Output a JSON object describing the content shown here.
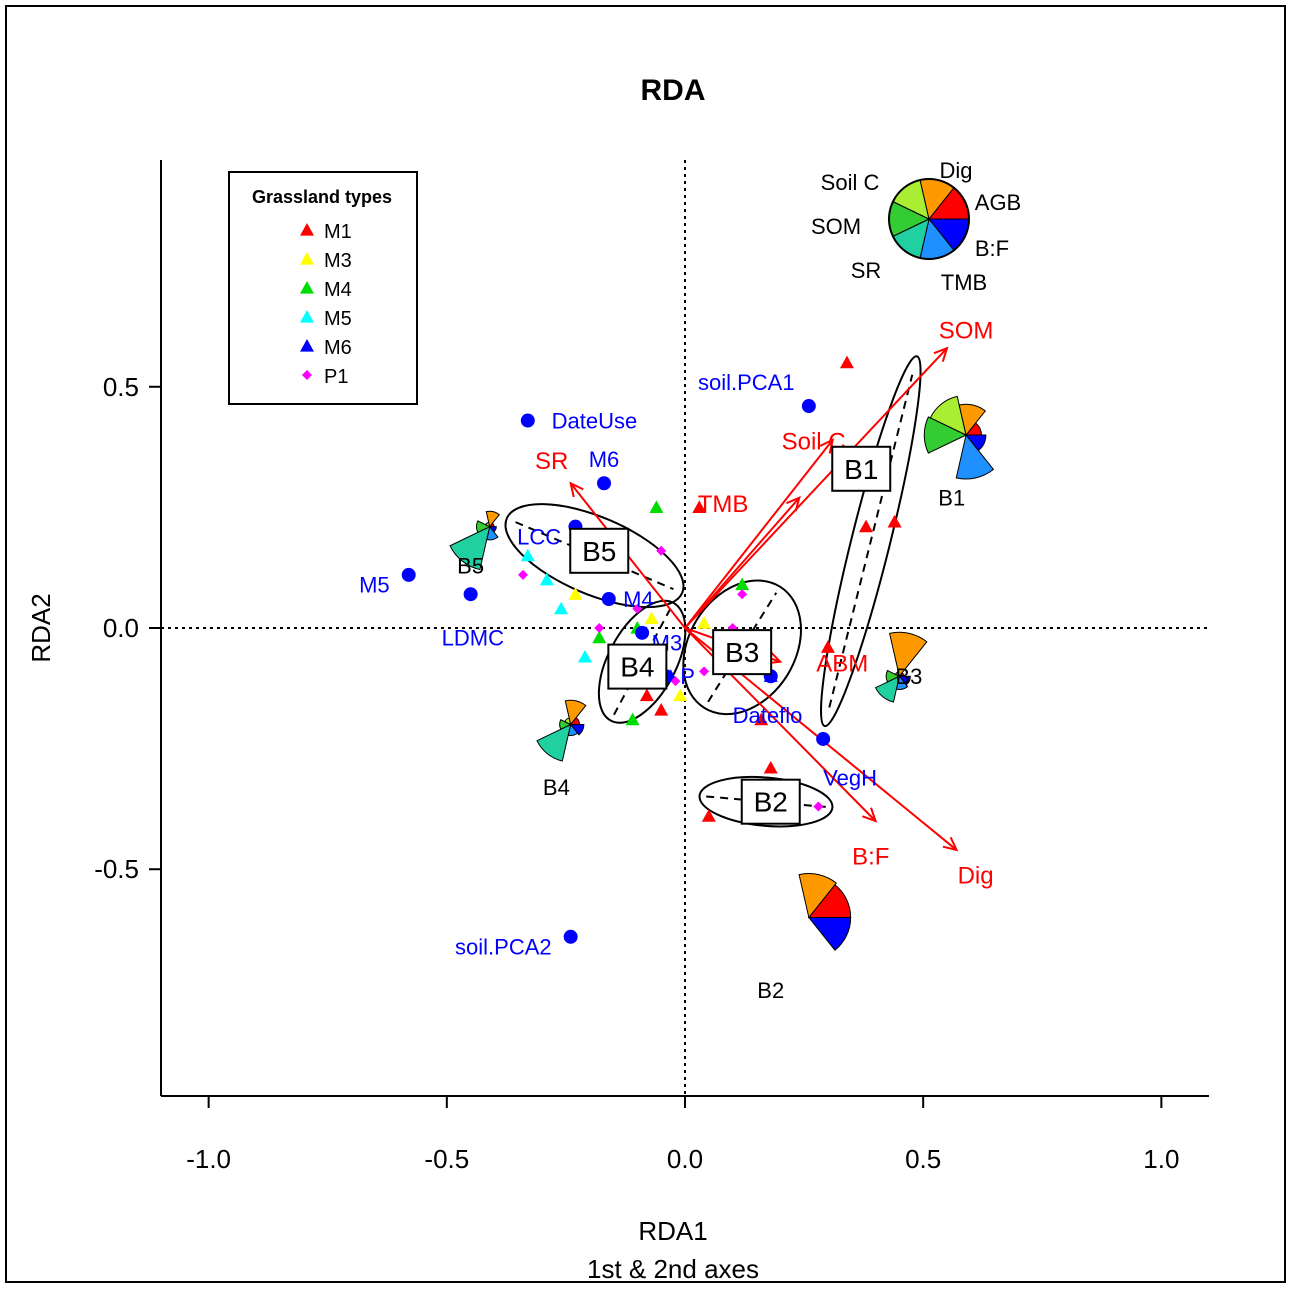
{
  "chart_data": {
    "type": "scatter",
    "title": "RDA",
    "xlabel": "RDA1",
    "xlabel2": "1st & 2nd axes",
    "ylabel": "RDA2",
    "xlim": [
      -1.1,
      1.1
    ],
    "ylim": [
      -0.97,
      0.97
    ],
    "xticks": [
      -1.0,
      -0.5,
      0.0,
      0.5,
      1.0
    ],
    "xtick_labels": [
      "-1.0",
      "-0.5",
      "0.0",
      "0.5",
      "1.0"
    ],
    "yticks": [
      -0.5,
      0.0,
      0.5
    ],
    "ytick_labels": [
      "-0.5",
      "0.0",
      "0.5"
    ],
    "grid": false,
    "legend": {
      "title": "Grassland types",
      "placement": "top-left",
      "entries": [
        {
          "label": "M1",
          "color": "#ff0000",
          "shape": "triangle"
        },
        {
          "label": "M3",
          "color": "#ffff00",
          "shape": "triangle"
        },
        {
          "label": "M4",
          "color": "#00dd00",
          "shape": "triangle"
        },
        {
          "label": "M5",
          "color": "#00ffff",
          "shape": "triangle"
        },
        {
          "label": "M6",
          "color": "#0000ff",
          "shape": "triangle"
        },
        {
          "label": "P1",
          "color": "#ff00ff",
          "shape": "diamond"
        }
      ]
    },
    "site_points": [
      {
        "type": "M1",
        "x": 0.34,
        "y": 0.55
      },
      {
        "type": "M1",
        "x": 0.38,
        "y": 0.21
      },
      {
        "type": "M1",
        "x": 0.44,
        "y": 0.22
      },
      {
        "type": "M1",
        "x": 0.03,
        "y": 0.25
      },
      {
        "type": "M1",
        "x": 0.3,
        "y": -0.04
      },
      {
        "type": "M1",
        "x": 0.16,
        "y": -0.19
      },
      {
        "type": "M1",
        "x": 0.18,
        "y": -0.29
      },
      {
        "type": "M1",
        "x": 0.05,
        "y": -0.39
      },
      {
        "type": "M1",
        "x": -0.05,
        "y": -0.17
      },
      {
        "type": "M1",
        "x": -0.08,
        "y": -0.14
      },
      {
        "type": "M3",
        "x": -0.23,
        "y": 0.07
      },
      {
        "type": "M3",
        "x": -0.07,
        "y": 0.02
      },
      {
        "type": "M3",
        "x": 0.04,
        "y": 0.01
      },
      {
        "type": "M3",
        "x": -0.01,
        "y": -0.14
      },
      {
        "type": "M4",
        "x": -0.06,
        "y": 0.25
      },
      {
        "type": "M4",
        "x": -0.18,
        "y": -0.02
      },
      {
        "type": "M4",
        "x": -0.1,
        "y": 0.0
      },
      {
        "type": "M4",
        "x": -0.11,
        "y": -0.19
      },
      {
        "type": "M4",
        "x": 0.12,
        "y": 0.09
      },
      {
        "type": "M5",
        "x": -0.33,
        "y": 0.15
      },
      {
        "type": "M5",
        "x": -0.29,
        "y": 0.1
      },
      {
        "type": "M5",
        "x": -0.26,
        "y": 0.04
      },
      {
        "type": "M5",
        "x": -0.21,
        "y": -0.06
      },
      {
        "type": "M6",
        "x": -0.03,
        "y": -0.1
      },
      {
        "type": "M6",
        "x": 0.18,
        "y": -0.1
      },
      {
        "type": "P1",
        "x": -0.34,
        "y": 0.11
      },
      {
        "type": "P1",
        "x": -0.05,
        "y": 0.16
      },
      {
        "type": "P1",
        "x": -0.1,
        "y": 0.04
      },
      {
        "type": "P1",
        "x": -0.18,
        "y": 0.0
      },
      {
        "type": "P1",
        "x": 0.12,
        "y": 0.07
      },
      {
        "type": "P1",
        "x": 0.1,
        "y": 0.0
      },
      {
        "type": "P1",
        "x": 0.04,
        "y": -0.09
      },
      {
        "type": "P1",
        "x": -0.02,
        "y": -0.11
      },
      {
        "type": "P1",
        "x": 0.28,
        "y": -0.37
      }
    ],
    "response_arrows": [
      {
        "label": "SOM",
        "x": 0.55,
        "y": 0.58,
        "label_dx": 0.04,
        "label_dy": 0.02
      },
      {
        "label": "Soil C",
        "x": 0.31,
        "y": 0.39,
        "label_dx": -0.04,
        "label_dy": -0.02
      },
      {
        "label": "TMB",
        "x": 0.24,
        "y": 0.27,
        "label_dx": -0.16,
        "label_dy": -0.03
      },
      {
        "label": "SR",
        "x": -0.24,
        "y": 0.3,
        "label_dx": -0.04,
        "label_dy": 0.03
      },
      {
        "label": "ABM",
        "x": 0.2,
        "y": -0.07,
        "label_dx": 0.13,
        "label_dy": -0.02
      },
      {
        "label": "B:F",
        "x": 0.4,
        "y": -0.4,
        "label_dx": -0.01,
        "label_dy": -0.09
      },
      {
        "label": "Dig",
        "x": 0.57,
        "y": -0.46,
        "label_dx": 0.04,
        "label_dy": -0.07
      }
    ],
    "explanatory_points": [
      {
        "label": "DateUse",
        "x": -0.33,
        "y": 0.43,
        "anchor": "start",
        "label_dx": 0.05,
        "label_dy": 0.0
      },
      {
        "label": "soil.PCA1",
        "x": 0.26,
        "y": 0.46,
        "anchor": "end",
        "label_dx": -0.03,
        "label_dy": 0.05
      },
      {
        "label": "M6",
        "x": -0.17,
        "y": 0.3,
        "anchor": "middle",
        "label_dx": 0.0,
        "label_dy": 0.05
      },
      {
        "label": "LCC",
        "x": -0.23,
        "y": 0.21,
        "anchor": "end",
        "label_dx": -0.03,
        "label_dy": -0.02
      },
      {
        "label": "M5",
        "x": -0.58,
        "y": 0.11,
        "anchor": "end",
        "label_dx": -0.04,
        "label_dy": -0.02
      },
      {
        "label": "LDMC",
        "x": -0.45,
        "y": 0.07,
        "anchor": "end",
        "label_dx": 0.07,
        "label_dy": -0.09
      },
      {
        "label": "M4",
        "x": -0.16,
        "y": 0.06,
        "anchor": "start",
        "label_dx": 0.03,
        "label_dy": 0.0
      },
      {
        "label": "M3",
        "x": -0.09,
        "y": -0.01,
        "anchor": "start",
        "label_dx": 0.02,
        "label_dy": -0.02
      },
      {
        "label": "P",
        "x": -0.04,
        "y": -0.1,
        "anchor": "start",
        "label_dx": 0.03,
        "label_dy": 0.0
      },
      {
        "label": "Dateflo",
        "x": 0.18,
        "y": -0.1,
        "anchor": "start",
        "label_dx": -0.08,
        "label_dy": -0.08
      },
      {
        "label": "VegH",
        "x": 0.29,
        "y": -0.23,
        "anchor": "start",
        "label_dx": 0.0,
        "label_dy": -0.08
      },
      {
        "label": "soil.PCA2",
        "x": -0.24,
        "y": -0.64,
        "anchor": "end",
        "label_dx": -0.04,
        "label_dy": -0.02
      }
    ],
    "clusters": [
      {
        "label": "B1",
        "cx": 0.39,
        "cy": 0.18,
        "rx": 0.4,
        "ry": 0.04,
        "angle_deg": -76,
        "box_x": 0.37,
        "box_y": 0.33
      },
      {
        "label": "B2",
        "cx": 0.17,
        "cy": -0.36,
        "rx": 0.14,
        "ry": 0.05,
        "angle_deg": 5,
        "box_x": 0.18,
        "box_y": -0.36
      },
      {
        "label": "B3",
        "cx": 0.12,
        "cy": -0.04,
        "rx": 0.15,
        "ry": 0.11,
        "angle_deg": -58,
        "box_x": 0.12,
        "box_y": -0.05
      },
      {
        "label": "B4",
        "cx": -0.09,
        "cy": -0.07,
        "rx": 0.14,
        "ry": 0.07,
        "angle_deg": -62,
        "box_x": -0.1,
        "box_y": -0.08
      },
      {
        "label": "B5",
        "cx": -0.19,
        "cy": 0.15,
        "rx": 0.2,
        "ry": 0.08,
        "angle_deg": 23,
        "box_x": -0.18,
        "box_y": 0.16
      }
    ],
    "pie_key": {
      "labels": [
        "AGB",
        "B:F",
        "TMB",
        "SR",
        "SOM",
        "Soil C",
        "Dig"
      ],
      "colors": [
        "#ff0000",
        "#0000ff",
        "#1e90ff",
        "#20d0a0",
        "#33cc33",
        "#aaee33",
        "#ff9900"
      ]
    },
    "cluster_pies": [
      {
        "label": "B1",
        "x": 0.59,
        "y": 0.4,
        "radii": [
          0.35,
          0.45,
          1.0,
          0.0,
          0.95,
          0.9,
          0.7
        ],
        "label_dx": -0.03,
        "label_dy": -0.13
      },
      {
        "label": "B2",
        "x": 0.26,
        "y": -0.6,
        "radii": [
          0.95,
          0.95,
          0.0,
          0.0,
          0.0,
          0.0,
          1.0
        ],
        "label_dx": -0.08,
        "label_dy": -0.15
      },
      {
        "label": "B3",
        "x": 0.45,
        "y": -0.1,
        "radii": [
          0.1,
          0.25,
          0.3,
          0.6,
          0.3,
          0.1,
          1.0
        ],
        "label_dx": 0.02,
        "label_dy": 0.0
      },
      {
        "label": "B4",
        "x": -0.24,
        "y": -0.2,
        "radii": [
          0.2,
          0.3,
          0.25,
          0.85,
          0.25,
          0.15,
          0.55
        ],
        "label_dx": -0.03,
        "label_dy": -0.13
      },
      {
        "label": "B5",
        "x": -0.41,
        "y": 0.21,
        "radii": [
          0.1,
          0.15,
          0.3,
          1.0,
          0.3,
          0.1,
          0.35
        ],
        "label_dx": -0.04,
        "label_dy": -0.08
      }
    ],
    "colors": {
      "response": "#ff0000",
      "explanatory": "#0000ff",
      "axis": "#000000"
    }
  }
}
